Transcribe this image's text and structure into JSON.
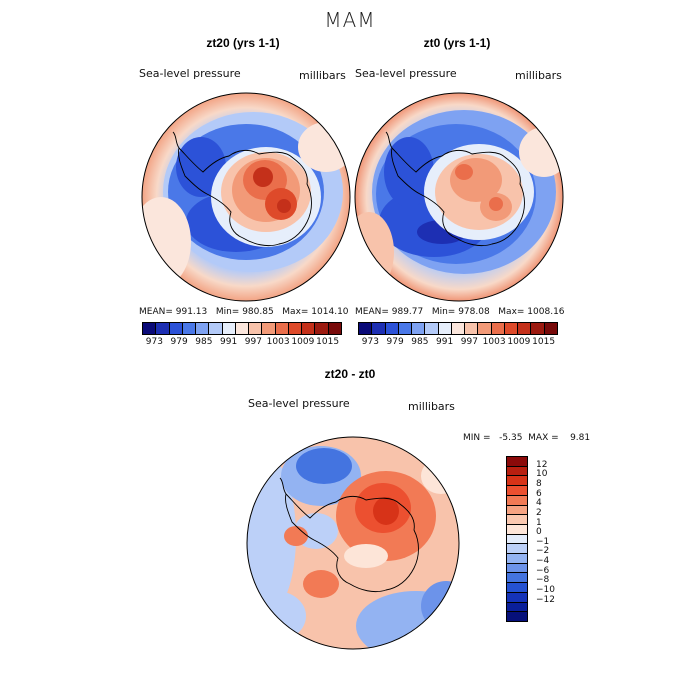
{
  "figure_title": "MAM",
  "panels": [
    {
      "title": "zt20 (yrs 1-1)",
      "field_label": "Sea-level pressure",
      "units_label": "millibars",
      "stats": {
        "mean": "MEAN= 991.13",
        "min": "Min= 980.85",
        "max": "Max= 1014.10"
      }
    },
    {
      "title": "zt0 (yrs 1-1)",
      "field_label": "Sea-level pressure",
      "units_label": "millibars",
      "stats": {
        "mean": "MEAN= 989.77",
        "min": "Min= 978.08",
        "max": "Max= 1008.16"
      }
    },
    {
      "title": "zt20 - zt0",
      "field_label": "Sea-level pressure",
      "units_label": "millibars",
      "stats_text": "MIN =   -5.35  MAX =    9.81"
    }
  ],
  "colorbar_top": {
    "colors": [
      "#0a0a78",
      "#1d2fb3",
      "#2c52d8",
      "#4a78e8",
      "#7ea2f2",
      "#b3caf8",
      "#e6eefb",
      "#fbe6dc",
      "#f8c3ab",
      "#f29a78",
      "#ea6e4b",
      "#de4a2a",
      "#c4301a",
      "#9c1a10",
      "#780a0a"
    ],
    "tick_labels": [
      "973",
      "979",
      "985",
      "991",
      "997",
      "1003",
      "1009",
      "1015"
    ]
  },
  "colorbar_diff": {
    "colors": [
      "#8b0a0a",
      "#b81f10",
      "#d73318",
      "#ec5030",
      "#f27a55",
      "#f6a382",
      "#fac8b0",
      "#fde5d8",
      "#e3ecfb",
      "#bcd0f8",
      "#93b3f2",
      "#6c93ea",
      "#4474e0",
      "#2552d2",
      "#1533b8",
      "#0a1f9a",
      "#06107a"
    ],
    "tick_labels": [
      "12",
      "10",
      "8",
      "6",
      "4",
      "2",
      "1",
      "0",
      "−1",
      "−2",
      "−4",
      "−6",
      "−8",
      "−10",
      "−12"
    ]
  }
}
